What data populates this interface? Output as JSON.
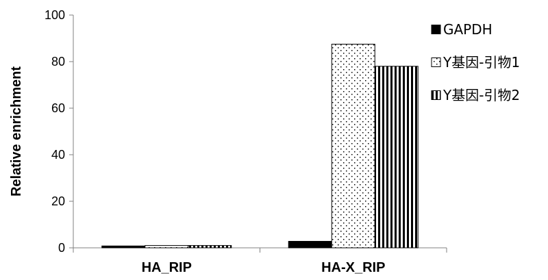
{
  "chart_data": {
    "type": "bar",
    "categories": [
      "HA_RIP",
      "HA-X_RIP"
    ],
    "series": [
      {
        "name": "GAPDH",
        "values": [
          0.8,
          2.8
        ],
        "pattern": "solid",
        "color": "#000000"
      },
      {
        "name": "Y基因-引物1",
        "values": [
          1.0,
          87.5
        ],
        "pattern": "dots",
        "color": "#000000"
      },
      {
        "name": "Y基因-引物2",
        "values": [
          1.0,
          78.0
        ],
        "pattern": "vertical-stripes",
        "color": "#000000"
      }
    ],
    "ylabel": "Relative enrichment",
    "ylim": [
      0,
      100
    ],
    "yticks": [
      0,
      20,
      40,
      60,
      80,
      100
    ],
    "legend_position": "top-right",
    "grid": false
  }
}
